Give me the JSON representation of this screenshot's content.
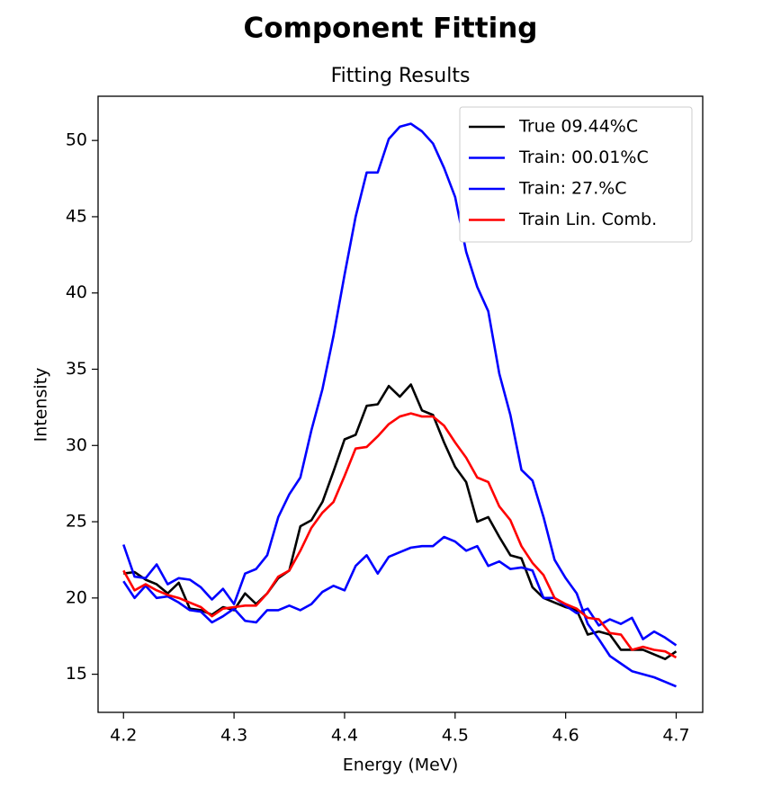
{
  "chart_data": {
    "type": "line",
    "title": "Component Fitting",
    "subtitle": "Fitting Results",
    "x_label": "Energy (MeV)",
    "y_label": "Intensity",
    "x": [
      4.2,
      4.21,
      4.22,
      4.23,
      4.24,
      4.25,
      4.26,
      4.27,
      4.28,
      4.29,
      4.3,
      4.31,
      4.32,
      4.33,
      4.34,
      4.35,
      4.36,
      4.37,
      4.38,
      4.39,
      4.4,
      4.41,
      4.42,
      4.43,
      4.44,
      4.45,
      4.46,
      4.47,
      4.48,
      4.49,
      4.5,
      4.51,
      4.52,
      4.53,
      4.54,
      4.55,
      4.56,
      4.57,
      4.58,
      4.59,
      4.6,
      4.61,
      4.62,
      4.63,
      4.64,
      4.65,
      4.66,
      4.67,
      4.68,
      4.69,
      4.7
    ],
    "series": [
      {
        "name": "True 09.44%C",
        "color": "#000000",
        "values": [
          21.6,
          21.7,
          21.2,
          20.9,
          20.3,
          21.0,
          19.3,
          19.2,
          18.9,
          19.4,
          19.2,
          20.3,
          19.6,
          20.3,
          21.3,
          21.8,
          24.7,
          25.1,
          26.3,
          28.3,
          30.4,
          30.7,
          32.6,
          32.7,
          33.9,
          33.2,
          34.0,
          32.3,
          32.0,
          30.2,
          28.6,
          27.6,
          25.0,
          25.3,
          24.0,
          22.8,
          22.6,
          20.7,
          20.0,
          19.7,
          19.4,
          19.2,
          17.6,
          17.8,
          17.6,
          16.6,
          16.6,
          16.6,
          16.3,
          16.0,
          16.5
        ]
      },
      {
        "name": "Train: 00.01%C",
        "color": "#0000ff",
        "values": [
          23.5,
          21.4,
          21.3,
          22.2,
          20.9,
          21.3,
          21.2,
          20.7,
          19.9,
          20.6,
          19.6,
          21.6,
          21.9,
          22.8,
          25.3,
          26.8,
          27.9,
          31.0,
          33.7,
          37.2,
          41.2,
          45.0,
          47.9,
          47.9,
          50.1,
          50.9,
          51.1,
          50.6,
          49.8,
          48.2,
          46.3,
          42.7,
          40.4,
          38.8,
          34.7,
          32.0,
          28.4,
          27.7,
          25.3,
          22.5,
          21.3,
          20.3,
          18.3,
          17.3,
          16.2,
          15.7,
          15.2,
          15.0,
          14.8,
          14.5,
          14.2
        ]
      },
      {
        "name": "Train: 27.%C",
        "color": "#0000ff",
        "values": [
          21.1,
          20.0,
          20.8,
          20.0,
          20.1,
          19.7,
          19.2,
          19.1,
          18.4,
          18.8,
          19.3,
          18.5,
          18.4,
          19.2,
          19.2,
          19.5,
          19.2,
          19.6,
          20.4,
          20.8,
          20.5,
          22.1,
          22.8,
          21.6,
          22.7,
          23.0,
          23.3,
          23.4,
          23.4,
          24.0,
          23.7,
          23.1,
          23.4,
          22.1,
          22.4,
          21.9,
          22.0,
          21.8,
          20.0,
          20.0,
          19.5,
          19.0,
          19.3,
          18.2,
          18.6,
          18.3,
          18.7,
          17.3,
          17.8,
          17.4,
          16.9
        ]
      },
      {
        "name": "Train Lin. Comb.",
        "color": "#ff0000",
        "values": [
          21.8,
          20.5,
          20.9,
          20.5,
          20.2,
          20.0,
          19.7,
          19.4,
          18.8,
          19.3,
          19.4,
          19.5,
          19.5,
          20.3,
          21.4,
          21.8,
          23.1,
          24.6,
          25.6,
          26.3,
          28.0,
          29.8,
          29.9,
          30.6,
          31.4,
          31.9,
          32.1,
          31.9,
          31.9,
          31.3,
          30.2,
          29.2,
          27.9,
          27.6,
          26.0,
          25.1,
          23.4,
          22.3,
          21.5,
          20.0,
          19.6,
          19.3,
          18.7,
          18.6,
          17.7,
          17.6,
          16.6,
          16.8,
          16.6,
          16.5,
          16.1
        ]
      }
    ],
    "xlim": [
      4.177,
      4.724
    ],
    "ylim": [
      12.5,
      52.9
    ],
    "xticks": [
      4.2,
      4.3,
      4.4,
      4.5,
      4.6,
      4.7
    ],
    "yticks": [
      15,
      20,
      25,
      30,
      35,
      40,
      45,
      50
    ],
    "legend": "upper right"
  }
}
